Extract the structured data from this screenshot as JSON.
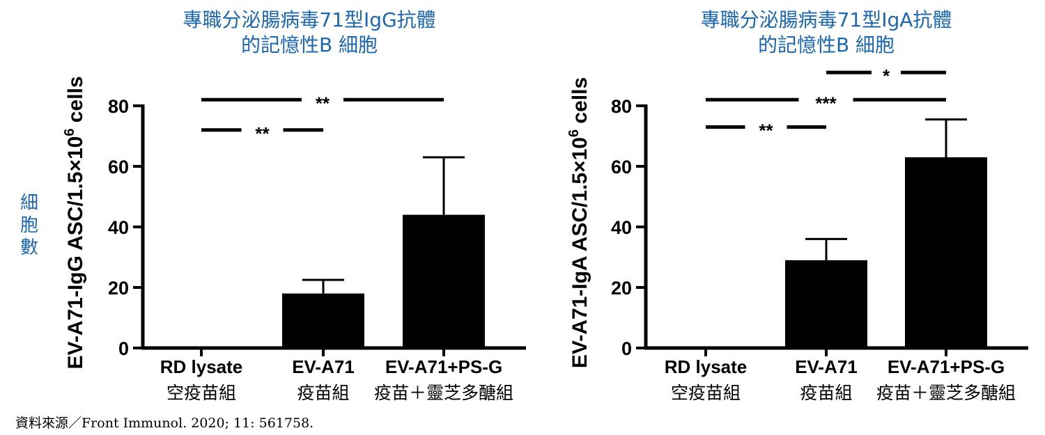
{
  "side_label": [
    "細",
    "胞",
    "數"
  ],
  "source_note": "資料來源／Front Immunol. 2020; 11: 561758.",
  "chart_data": [
    {
      "type": "bar",
      "title": [
        "專職分泌腸病毒71型IgG抗體",
        "的記憶性B 細胞"
      ],
      "ylabel_main": "EV-A71-IgG ASC/1.5×10",
      "ylabel_sup": "6",
      "ylabel_tail": " cells",
      "ylim": [
        0,
        80
      ],
      "yticks": [
        "0",
        "20",
        "40",
        "60",
        "80"
      ],
      "categories": [
        "RD lysate",
        "EV-A71",
        "EV-A71+PS-G"
      ],
      "categories_zh": [
        "空疫苗組",
        "疫苗組",
        "疫苗＋靈芝多醣組"
      ],
      "values": [
        0,
        18,
        44
      ],
      "errors": [
        0,
        4.5,
        19
      ],
      "bar_color": "#000000",
      "significance": [
        {
          "from": 0,
          "to": 2,
          "label": "**",
          "y": 82
        },
        {
          "from": 0,
          "to": 1,
          "label": "**",
          "y": 72
        }
      ]
    },
    {
      "type": "bar",
      "title": [
        "專職分泌腸病毒71型IgA抗體",
        "的記憶性B 細胞"
      ],
      "ylabel_main": "EV-A71-IgA ASC/1.5×10",
      "ylabel_sup": "6",
      "ylabel_tail": " cells",
      "ylim": [
        0,
        80
      ],
      "yticks": [
        "0",
        "20",
        "40",
        "60",
        "80"
      ],
      "categories": [
        "RD lysate",
        "EV-A71",
        "EV-A71+PS-G"
      ],
      "categories_zh": [
        "空疫苗組",
        "疫苗組",
        "疫苗＋靈芝多醣組"
      ],
      "values": [
        0,
        29,
        63
      ],
      "errors": [
        0,
        7,
        12.5
      ],
      "bar_color": "#000000",
      "significance": [
        {
          "from": 1,
          "to": 2,
          "label": "*",
          "y": 91
        },
        {
          "from": 0,
          "to": 2,
          "label": "***",
          "y": 82
        },
        {
          "from": 0,
          "to": 1,
          "label": "**",
          "y": 73
        }
      ]
    }
  ]
}
